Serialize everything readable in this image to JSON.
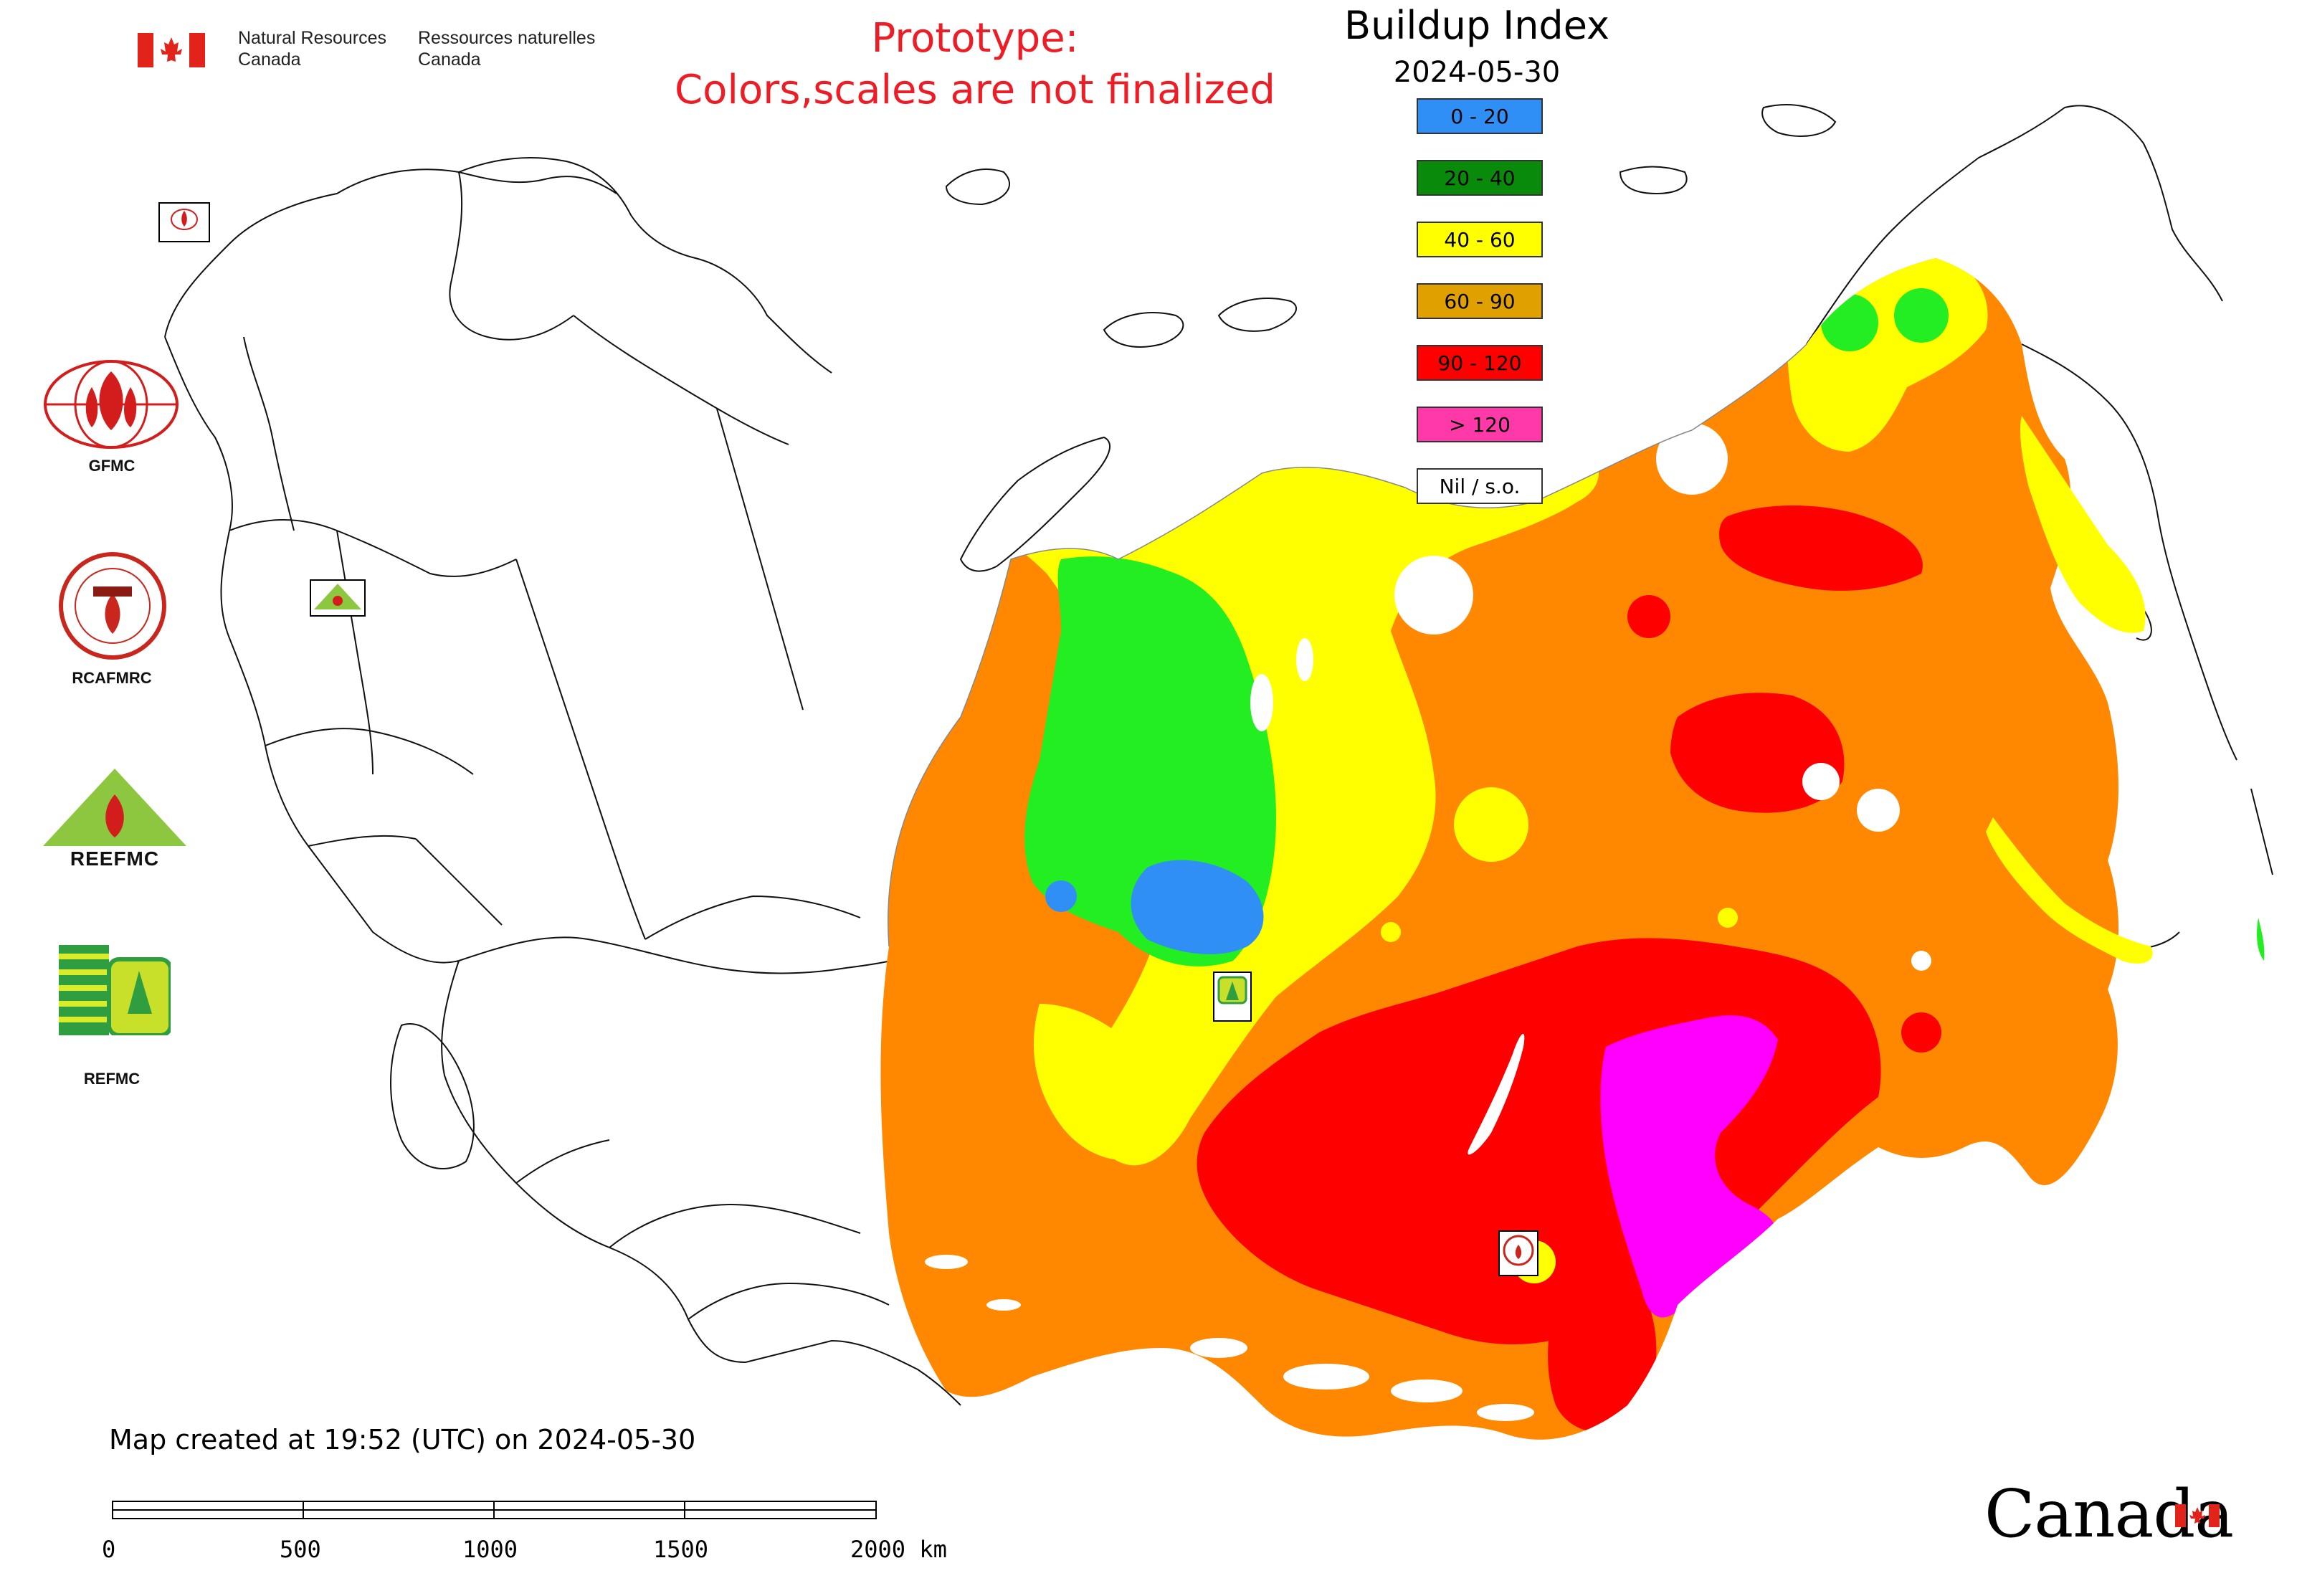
{
  "header": {
    "org_en_line1": "Natural Resources",
    "org_en_line2": "Canada",
    "org_fr_line1": "Ressources naturelles",
    "org_fr_line2": "Canada",
    "prototype_line1": "Prototype:",
    "prototype_line2": "Colors,scales are not finalized"
  },
  "legend": {
    "title": "Buildup Index",
    "date": "2024-05-30",
    "items": [
      {
        "label": "0 - 20",
        "color": "#2f8ff5"
      },
      {
        "label": "20 - 40",
        "color": "#0a8a0a"
      },
      {
        "label": "40 - 60",
        "color": "#ffff00"
      },
      {
        "label": "60 - 90",
        "color": "#e0a000"
      },
      {
        "label": "90 - 120",
        "color": "#ff0000"
      },
      {
        "label": "> 120",
        "color": "#ff3aa8"
      },
      {
        "label": "Nil / s.o.",
        "color": "#ffffff"
      }
    ]
  },
  "map_colors": {
    "blue": "#2f8ff5",
    "green": "#22ee22",
    "yellow": "#ffff00",
    "orange": "#ff8800",
    "red": "#ff0000",
    "magenta": "#ff00ff"
  },
  "logos": {
    "gfmc": "GFMC",
    "rcafmrc": "RCAFMRC",
    "reefmc": "REEFMC",
    "refmc": "REFMC"
  },
  "footer": {
    "created": "Map created at 19:52 (UTC) on 2024-05-30",
    "scale_ticks": [
      "0",
      "500",
      "1000",
      "1500",
      "2000 km"
    ],
    "wordmark": "Canada"
  }
}
